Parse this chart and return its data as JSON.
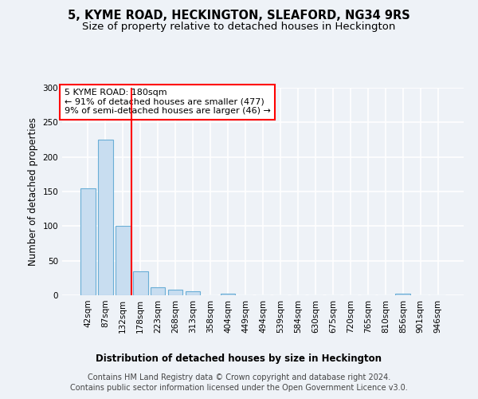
{
  "title_line1": "5, KYME ROAD, HECKINGTON, SLEAFORD, NG34 9RS",
  "title_line2": "Size of property relative to detached houses in Heckington",
  "xlabel": "Distribution of detached houses by size in Heckington",
  "ylabel": "Number of detached properties",
  "bar_labels": [
    "42sqm",
    "87sqm",
    "132sqm",
    "178sqm",
    "223sqm",
    "268sqm",
    "313sqm",
    "358sqm",
    "404sqm",
    "449sqm",
    "494sqm",
    "539sqm",
    "584sqm",
    "630sqm",
    "675sqm",
    "720sqm",
    "765sqm",
    "810sqm",
    "856sqm",
    "901sqm",
    "946sqm"
  ],
  "bar_values": [
    155,
    225,
    100,
    35,
    12,
    8,
    6,
    0,
    2,
    0,
    0,
    0,
    0,
    0,
    0,
    0,
    0,
    0,
    2,
    0,
    0
  ],
  "bar_color": "#c8ddf0",
  "bar_edge_color": "#6aaed6",
  "annotation_text_line1": "5 KYME ROAD: 180sqm",
  "annotation_text_line2": "← 91% of detached houses are smaller (477)",
  "annotation_text_line3": "9% of semi-detached houses are larger (46) →",
  "annotation_box_color": "white",
  "annotation_box_edge_color": "red",
  "vline_color": "red",
  "vline_bar_index": 2.5,
  "ylim": [
    0,
    300
  ],
  "yticks": [
    0,
    50,
    100,
    150,
    200,
    250,
    300
  ],
  "bg_color": "#eef2f7",
  "plot_bg_color": "#eef2f7",
  "grid_color": "white",
  "title_fontsize": 10.5,
  "subtitle_fontsize": 9.5,
  "axis_label_fontsize": 8.5,
  "tick_fontsize": 7.5,
  "annotation_fontsize": 8,
  "footer_fontsize": 7,
  "footer_line1": "Contains HM Land Registry data © Crown copyright and database right 2024.",
  "footer_line2": "Contains public sector information licensed under the Open Government Licence v3.0."
}
